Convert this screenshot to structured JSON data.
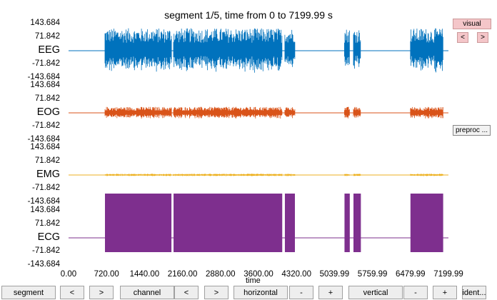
{
  "title": "segment 1/5, time from 0 to 7199.99 s",
  "x_axis": {
    "label": "time",
    "ticks": [
      "0.00",
      "720.00",
      "1440.00",
      "2160.00",
      "2880.00",
      "3600.00",
      "4320.00",
      "5039.99",
      "5759.99",
      "6479.99",
      "7199.99"
    ],
    "range": [
      0,
      7199.99
    ]
  },
  "channels": [
    {
      "name": "EEG",
      "color": "#0072bd",
      "ticks": [
        "143.684",
        "71.842",
        "-71.842",
        "-143.684"
      ],
      "amplitude": 0.75
    },
    {
      "name": "EOG",
      "color": "#d95319",
      "ticks": [
        "143.684",
        "71.842",
        "-71.842",
        "-143.684"
      ],
      "amplitude": 0.2
    },
    {
      "name": "EMG",
      "color": "#edb120",
      "ticks": [
        "143.684",
        "71.842",
        "-71.842",
        "-143.684"
      ],
      "amplitude": 0.04
    },
    {
      "name": "ECG",
      "color": "#7e2f8e",
      "ticks": [
        "143.684",
        "71.842",
        "-71.842",
        "-143.684"
      ],
      "amplitude": 1.0
    }
  ],
  "recording_segments_s": [
    [
      690,
      1950
    ],
    [
      1990,
      4050
    ],
    [
      4100,
      4290
    ],
    [
      5230,
      5330
    ],
    [
      5400,
      5540
    ],
    [
      6480,
      7100
    ]
  ],
  "side_controls": {
    "visual": "visual",
    "prev": "<",
    "next": ">",
    "preproc": "preproc ..."
  },
  "bottom_controls": {
    "segment": "segment",
    "segment_prev": "<",
    "segment_next": ">",
    "channel": "channel",
    "channel_prev": "<",
    "channel_next": ">",
    "horizontal": "horizontal",
    "horizontal_minus": "-",
    "horizontal_plus": "+",
    "vertical": "vertical",
    "vertical_minus": "-",
    "vertical_plus": "+",
    "identify": "ident..."
  }
}
